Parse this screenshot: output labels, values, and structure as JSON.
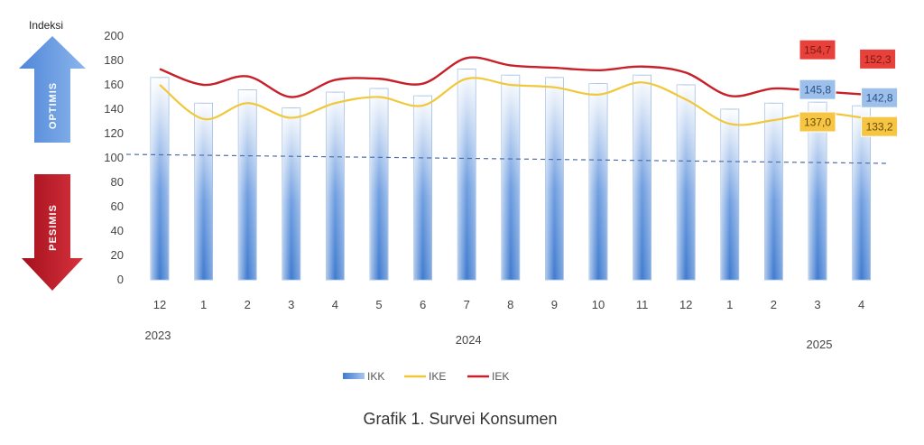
{
  "chart_data": {
    "type": "bar",
    "ylabel": "Indeksi",
    "ylim": [
      0,
      200
    ],
    "yticks": [
      0,
      20,
      40,
      60,
      80,
      100,
      120,
      140,
      160,
      180,
      200
    ],
    "threshold": 100,
    "categories": [
      "12",
      "1",
      "2",
      "3",
      "4",
      "5",
      "6",
      "7",
      "8",
      "9",
      "10",
      "11",
      "12",
      "1",
      "2",
      "3",
      "4"
    ],
    "year_labels": [
      {
        "text": "2023",
        "index": 0
      },
      {
        "text": "2024",
        "index": 7
      },
      {
        "text": "2025",
        "index": 15
      }
    ],
    "series": [
      {
        "name": "IKK",
        "kind": "bar",
        "color": "#5b8fd6",
        "values": [
          166,
          145,
          156,
          141,
          154,
          157,
          151,
          173,
          168,
          166,
          161,
          168,
          160,
          140,
          145,
          145.8,
          142.8
        ]
      },
      {
        "name": "IKE",
        "kind": "line",
        "color": "#f0c83a",
        "values": [
          160,
          132,
          145,
          133,
          145,
          150,
          143,
          165,
          160,
          158,
          152,
          162,
          148,
          128,
          131,
          137.0,
          133.2
        ]
      },
      {
        "name": "IEK",
        "kind": "line",
        "color": "#c8202a",
        "values": [
          173,
          160,
          167,
          150,
          164,
          165,
          161,
          182,
          176,
          174,
          172,
          175,
          170,
          151,
          157,
          154.7,
          152.3
        ]
      }
    ],
    "data_labels": [
      {
        "series": "IEK",
        "index": 15,
        "text": "154,7",
        "bg": "#e8413c",
        "fg": "#7a1a10"
      },
      {
        "series": "IEK",
        "index": 16,
        "text": "152,3",
        "bg": "#e8413c",
        "fg": "#7a1a10"
      },
      {
        "series": "IKK",
        "index": 15,
        "text": "145,8",
        "bg": "#9dc0ea",
        "fg": "#2a4f8a"
      },
      {
        "series": "IKK",
        "index": 16,
        "text": "142,8",
        "bg": "#9dc0ea",
        "fg": "#2a4f8a"
      },
      {
        "series": "IKE",
        "index": 15,
        "text": "137,0",
        "bg": "#f5c543",
        "fg": "#6a4a00"
      },
      {
        "series": "IKE",
        "index": 16,
        "text": "133,2",
        "bg": "#f5c543",
        "fg": "#6a4a00"
      }
    ],
    "side_labels": {
      "up": "OPTIMIS",
      "down": "PESIMIS"
    },
    "legend": [
      "IKK",
      "IKE",
      "IEK"
    ],
    "caption": "Grafik 1. Survei Konsumen"
  }
}
